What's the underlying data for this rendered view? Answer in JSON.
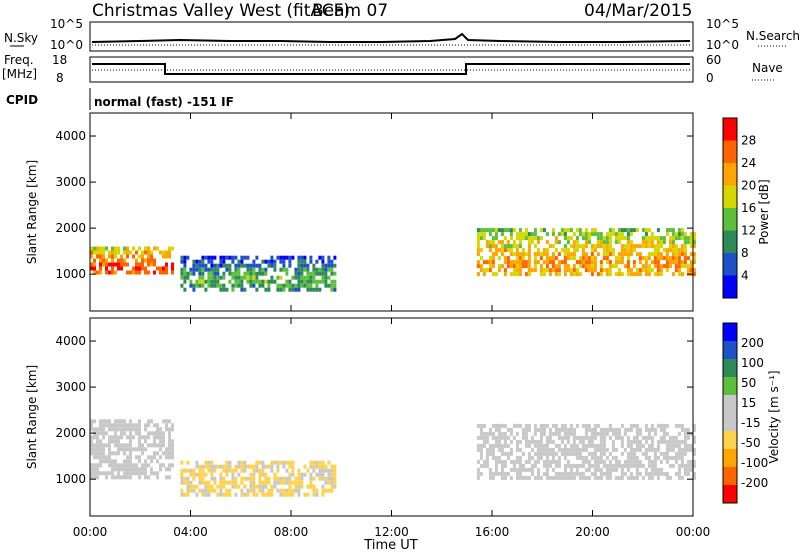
{
  "header": {
    "station": "Christmas Valley West (fitACF)",
    "beam": "Beam 07",
    "date": "04/Mar/2015"
  },
  "noise_panel": {
    "left_label": "N.Sky",
    "right_label": "N.Search",
    "left_ticks": [
      "10^5",
      "10^0"
    ],
    "right_ticks": [
      "10^5",
      "10^0"
    ]
  },
  "freq_panel": {
    "label_line1": "Freq.",
    "label_line2": "[MHz]",
    "left_ticks": [
      "18",
      "8"
    ],
    "right_ticks": [
      "60",
      "0"
    ],
    "right_label": "Nave"
  },
  "cpid_panel": {
    "label": "CPID",
    "text": "normal (fast) -151 IF"
  },
  "colors": {
    "power_scale": [
      "#0000ff",
      "#1e50c8",
      "#2e8b57",
      "#5bbf3c",
      "#d6d600",
      "#ffa500",
      "#ff6400",
      "#ff0000"
    ],
    "velocity_scale": [
      "#ff0000",
      "#ff6400",
      "#ffa500",
      "#ffd24c",
      "#c8c8c8",
      "#c8c8c8",
      "#5bbf3c",
      "#2e8b57",
      "#1e50c8",
      "#0000ff"
    ]
  },
  "chart_data": [
    {
      "type": "heatmap",
      "title": "",
      "xlabel": "",
      "ylabel": "Slant Range [km]",
      "x_ticks": [
        "00:00",
        "04:00",
        "08:00",
        "12:00",
        "16:00",
        "20:00",
        "00:00"
      ],
      "xlim_hours": [
        0,
        24
      ],
      "y_ticks": [
        1000,
        2000,
        3000,
        4000
      ],
      "ylim": [
        200,
        4500
      ],
      "grid": false,
      "colorbar": {
        "label": "Power [dB]",
        "tick_labels": [
          "4",
          "8",
          "12",
          "16",
          "20",
          "24",
          "28"
        ],
        "range": [
          0,
          32
        ]
      },
      "echo_regions_summary": [
        {
          "t_start": 0.0,
          "t_end": 3.3,
          "range_km": [
            1000,
            1600
          ],
          "power_db": 28
        },
        {
          "t_start": 3.6,
          "t_end": 9.8,
          "range_km": [
            700,
            1400
          ],
          "power_db": 14
        },
        {
          "t_start": 15.4,
          "t_end": 24.0,
          "range_km": [
            1000,
            2000
          ],
          "power_db": 24
        }
      ]
    },
    {
      "type": "heatmap",
      "title": "",
      "xlabel": "Time UT",
      "ylabel": "Slant Range [km]",
      "x_ticks": [
        "00:00",
        "04:00",
        "08:00",
        "12:00",
        "16:00",
        "20:00",
        "00:00"
      ],
      "xlim_hours": [
        0,
        24
      ],
      "y_ticks": [
        1000,
        2000,
        3000,
        4000
      ],
      "ylim": [
        200,
        4500
      ],
      "grid": false,
      "colorbar": {
        "label": "Velocity [m s⁻¹]",
        "tick_labels": [
          "200",
          "100",
          "50",
          "15",
          "-15",
          "-50",
          "-100",
          "-200"
        ],
        "range": [
          -250,
          250
        ]
      },
      "echo_regions_summary": [
        {
          "t_start": 0.0,
          "t_end": 3.3,
          "range_km": [
            1000,
            2300
          ],
          "velocity": 0
        },
        {
          "t_start": 3.6,
          "t_end": 9.8,
          "range_km": [
            700,
            1400
          ],
          "velocity": -60
        },
        {
          "t_start": 15.4,
          "t_end": 24.0,
          "range_km": [
            1000,
            2200
          ],
          "velocity": 0
        }
      ]
    }
  ]
}
